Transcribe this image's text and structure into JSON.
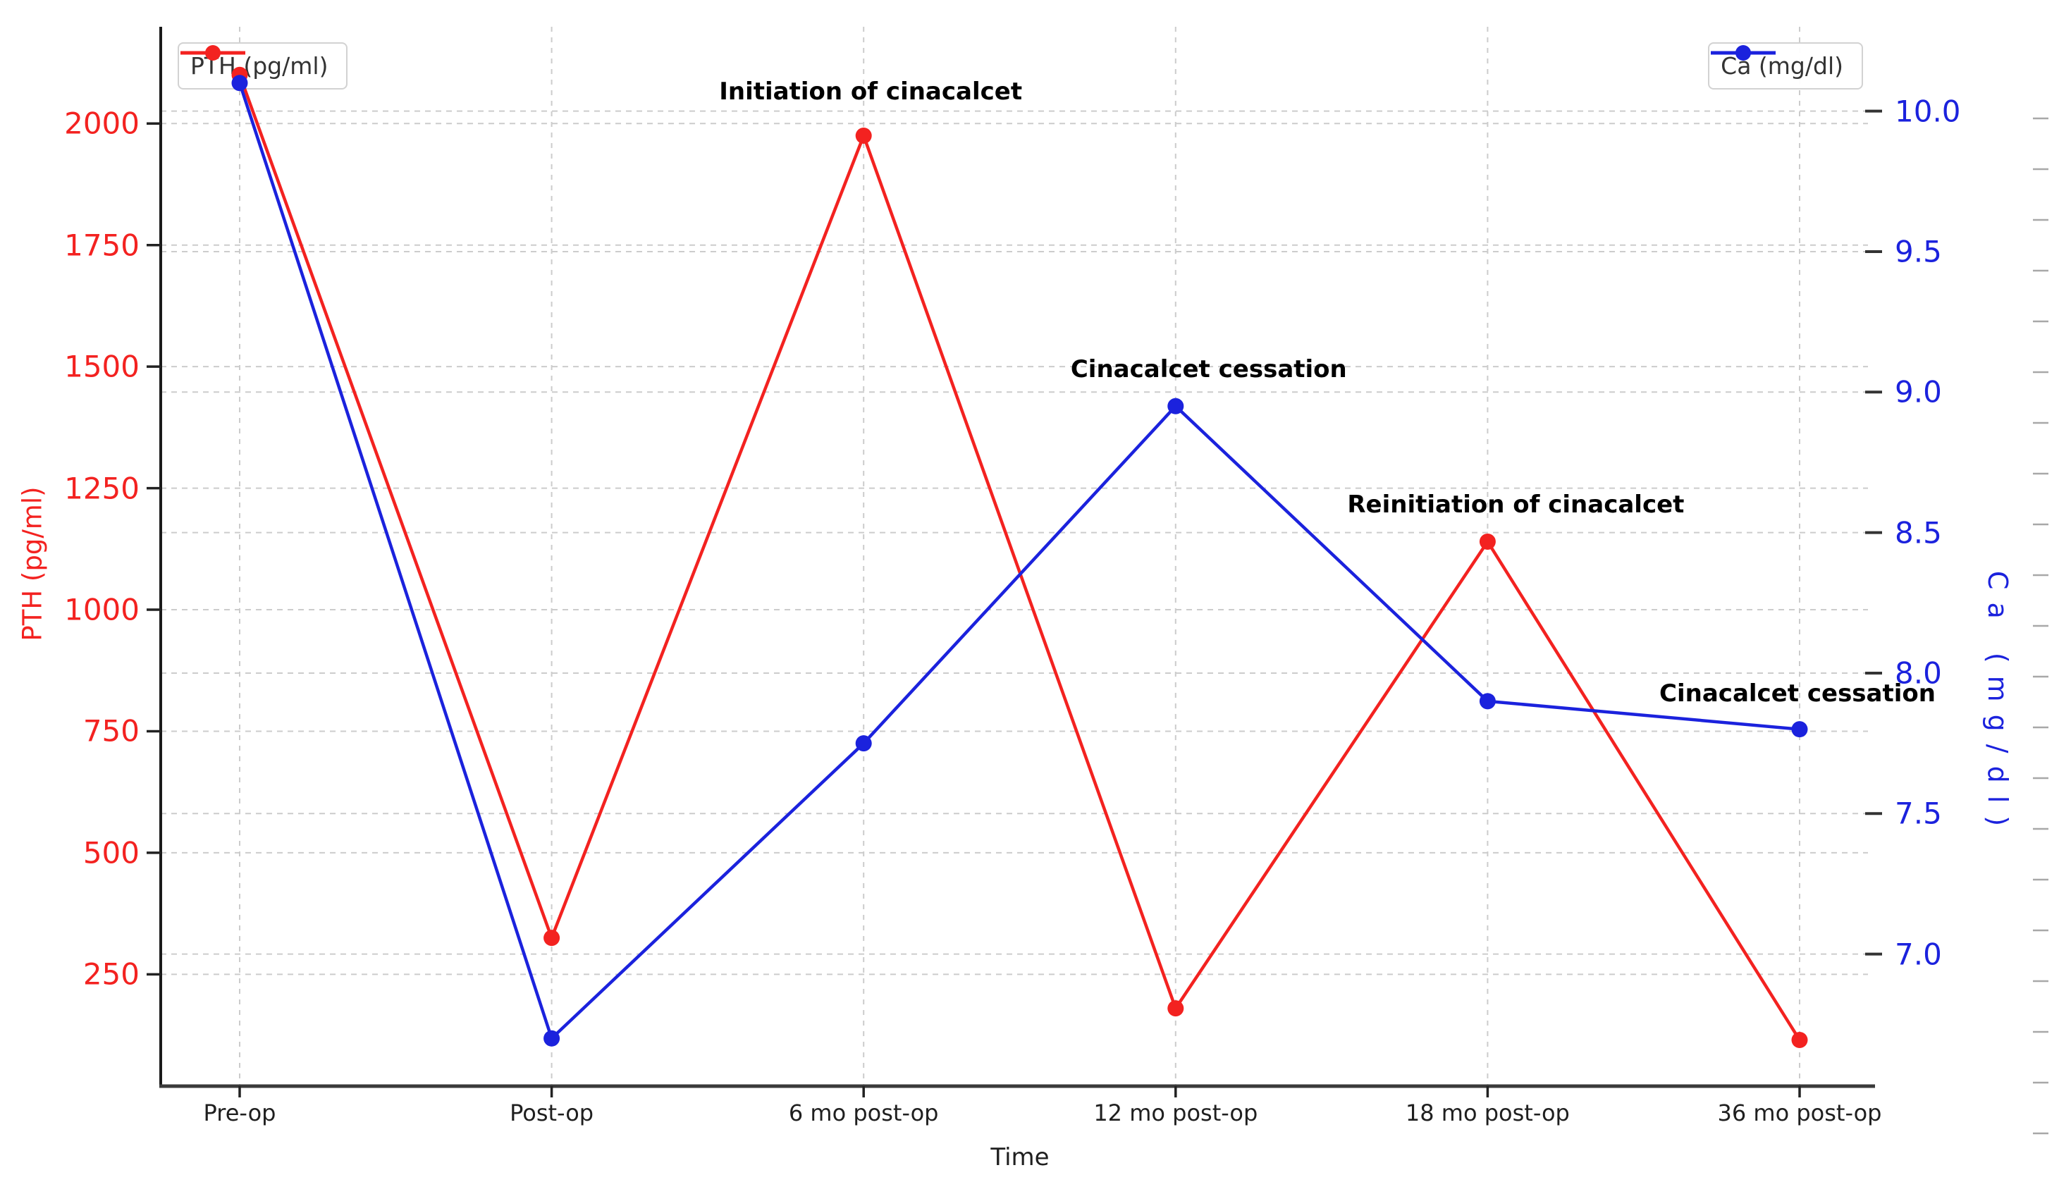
{
  "chart_data": {
    "type": "line",
    "title": "",
    "xlabel": "Time",
    "categories": [
      "Pre-op",
      "Post-op",
      "6 mo post-op",
      "12 mo post-op",
      "18 mo post-op",
      "36 mo post-op"
    ],
    "series": [
      {
        "name": "PTH (pg/ml)",
        "axis": "left",
        "color": "#f32220",
        "marker": "circle",
        "values": [
          2100,
          325,
          1975,
          180,
          1140,
          115
        ]
      },
      {
        "name": "Ca (mg/dl)",
        "axis": "right",
        "color": "#1b22dd",
        "marker": "circle",
        "values": [
          10.1,
          6.7,
          7.75,
          8.95,
          7.9,
          7.8
        ]
      }
    ],
    "left_axis": {
      "label": "PTH (pg/ml)",
      "color": "#f32220",
      "ticks": [
        250,
        500,
        750,
        1000,
        1250,
        1500,
        1750,
        2000
      ],
      "range": [
        20,
        2199
      ]
    },
    "right_axis": {
      "label": "Ca (mg/dl)",
      "color": "#1b22dd",
      "ticks": [
        7.0,
        7.5,
        8.0,
        8.5,
        9.0,
        9.5,
        10.0
      ],
      "range": [
        6.53,
        10.3
      ]
    },
    "annotations": [
      {
        "text": "Initiation of cinacalcet",
        "category_index": 2
      },
      {
        "text": "Cinacalcet cessation",
        "category_index": 3
      },
      {
        "text": "Reinitiation of cinacalcet",
        "category_index": 4
      },
      {
        "text": "Cinacalcet cessation",
        "category_index": 5
      }
    ],
    "grid": true,
    "grid_style": "dashed",
    "legend_positions": [
      "top-left",
      "top-right"
    ]
  },
  "legends": {
    "left_label": "PTH (pg/ml)",
    "right_label": "Ca (mg/dl)"
  }
}
